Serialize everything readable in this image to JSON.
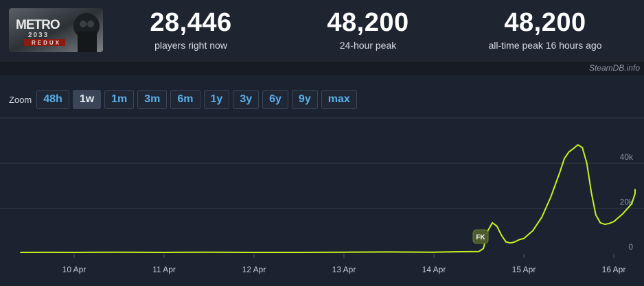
{
  "stats": [
    {
      "value": "28,446",
      "label": "players right now"
    },
    {
      "value": "48,200",
      "label": "24-hour peak"
    },
    {
      "value": "48,200",
      "label": "all-time peak 16 hours ago"
    }
  ],
  "capsule": {
    "title": "METRO",
    "subtitle": "2033",
    "tag": "REDUX"
  },
  "source_label": "SteamDB.info",
  "zoom": {
    "label": "Zoom",
    "options": [
      "48h",
      "1w",
      "1m",
      "3m",
      "6m",
      "1y",
      "3y",
      "6y",
      "9y",
      "max"
    ],
    "selected": "1w"
  },
  "marker": {
    "label": "FK"
  },
  "colors": {
    "line": "#c6f41f",
    "grid": "#333c4b",
    "background": "#1b2230"
  },
  "chart_data": {
    "type": "line",
    "x_tick_labels": [
      "10 Apr",
      "11 Apr",
      "12 Apr",
      "13 Apr",
      "14 Apr",
      "15 Apr",
      "16 Apr"
    ],
    "y_tick_labels": [
      "0",
      "20k",
      "40k"
    ],
    "ylim": [
      0,
      60000
    ],
    "grid": true,
    "series": [
      {
        "x_days": [
          9.4,
          9.7,
          10.0,
          10.5,
          11.0,
          11.5,
          12.0,
          12.5,
          13.0,
          13.5,
          14.0,
          14.3,
          14.5,
          14.55,
          14.6,
          14.65,
          14.7,
          14.75,
          14.8,
          14.85,
          14.9,
          14.95,
          15.0,
          15.1,
          15.2,
          15.3,
          15.4,
          15.45,
          15.5,
          15.55,
          15.6,
          15.65,
          15.7,
          15.75,
          15.8,
          15.85,
          15.9,
          15.95,
          16.0,
          16.1,
          16.2,
          16.3,
          16.33
        ],
        "players": [
          300,
          350,
          300,
          400,
          300,
          400,
          300,
          300,
          400,
          500,
          400,
          600,
          700,
          2000,
          10000,
          13500,
          12000,
          8000,
          5000,
          4500,
          5000,
          6000,
          6500,
          10000,
          16000,
          25000,
          36000,
          42000,
          45000,
          46500,
          48200,
          47000,
          40000,
          27000,
          17000,
          13500,
          12800,
          13200,
          14000,
          17500,
          22000,
          26500,
          28446
        ]
      }
    ]
  }
}
